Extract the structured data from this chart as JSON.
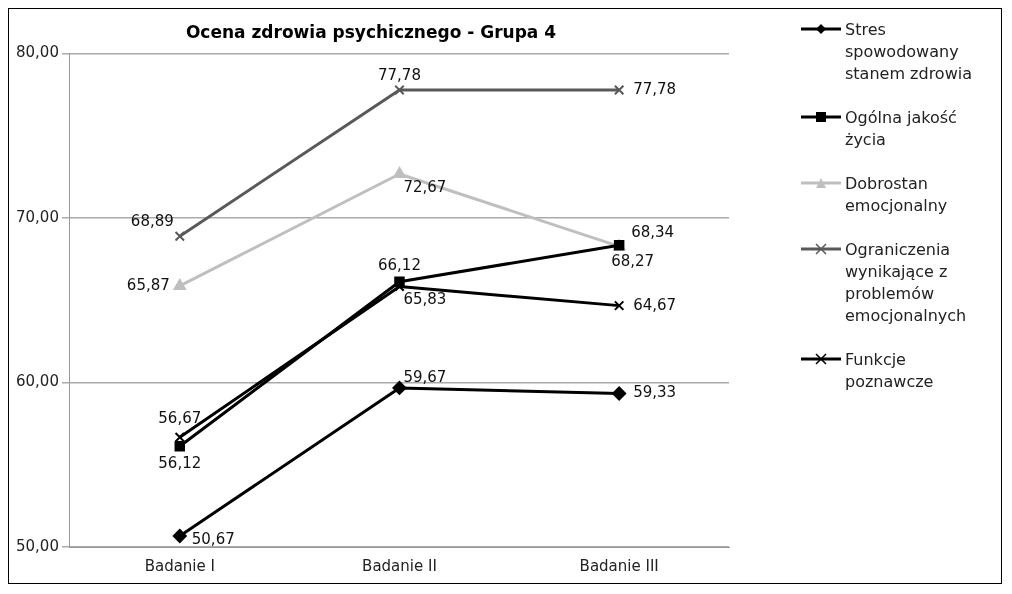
{
  "chart_data": {
    "type": "line",
    "title": "Ocena zdrowia psychicznego - Grupa 4",
    "categories": [
      "Badanie I",
      "Badanie II",
      "Badanie III"
    ],
    "series": [
      {
        "name": "Stres spowodowany stanem zdrowia",
        "color": "#000000",
        "marker": "diamond",
        "values": [
          50.67,
          59.67,
          59.33
        ],
        "value_labels": [
          "50,67",
          "59,67",
          "59,33"
        ]
      },
      {
        "name": "Ogólna jakość życia",
        "color": "#000000",
        "marker": "square",
        "values": [
          56.12,
          66.12,
          68.34
        ],
        "value_labels": [
          "56,12",
          "66,12",
          "68,34"
        ]
      },
      {
        "name": "Dobrostan emocjonalny",
        "color": "#bfbfbf",
        "marker": "triangle",
        "values": [
          65.87,
          72.67,
          68.27
        ],
        "value_labels": [
          "65,87",
          "72,67",
          "68,27"
        ]
      },
      {
        "name": "Ograniczenia wynikające z problemów emocjonalnych",
        "color": "#595959",
        "marker": "cross",
        "values": [
          68.89,
          77.78,
          77.78
        ],
        "value_labels": [
          "68,89",
          "77,78",
          "77,78"
        ]
      },
      {
        "name": "Funkcje poznawcze",
        "color": "#000000",
        "marker": "cross",
        "values": [
          56.67,
          65.83,
          64.67
        ],
        "value_labels": [
          "56,67",
          "65,83",
          "64,67"
        ]
      }
    ],
    "ylim": [
      50,
      80
    ],
    "yticks": [
      {
        "value": 50,
        "label": "50,00"
      },
      {
        "value": 60,
        "label": "60,00"
      },
      {
        "value": 70,
        "label": "70,00"
      },
      {
        "value": 80,
        "label": "80,00"
      }
    ],
    "grid": "y",
    "legend": "right",
    "line_style": "solid"
  }
}
